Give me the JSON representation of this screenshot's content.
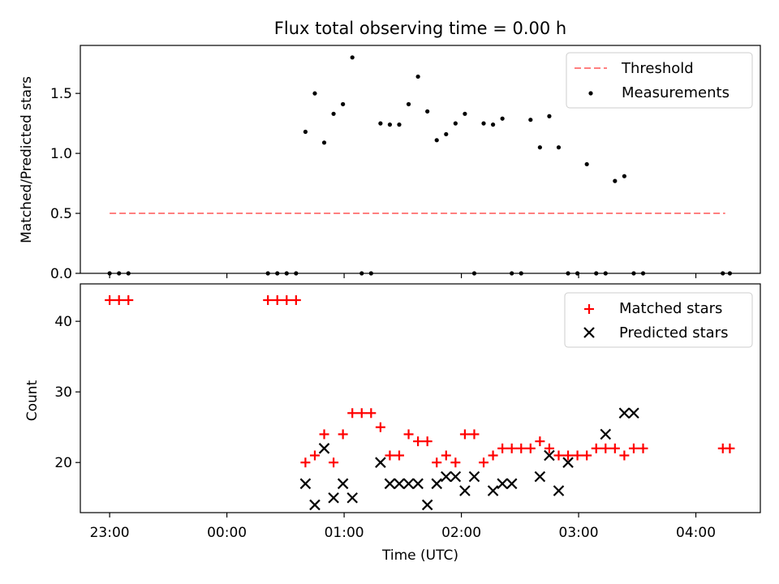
{
  "chart_data": [
    {
      "type": "scatter",
      "title": "Flux total observing time = 0.00 h",
      "ylabel": "Matched/Predicted stars",
      "xlabel": "",
      "xlim": [
        22.75,
        28.55
      ],
      "ylim": [
        0,
        1.9
      ],
      "yticks": [
        "0.0",
        "0.5",
        "1.0",
        "1.5"
      ],
      "legend_position": "top-right",
      "threshold": {
        "name": "Threshold",
        "value": 0.5,
        "x_range": [
          23.0,
          28.25
        ],
        "color": "#ff7f7f",
        "style": "dashed"
      },
      "series": [
        {
          "name": "Measurements",
          "color": "#000000",
          "marker": "dot",
          "x": [
            23.0,
            23.08,
            23.16,
            24.35,
            24.43,
            24.51,
            24.59,
            24.67,
            24.75,
            24.83,
            24.91,
            24.99,
            25.07,
            25.15,
            25.23,
            25.31,
            25.39,
            25.47,
            25.55,
            25.63,
            25.71,
            25.79,
            25.87,
            25.95,
            26.03,
            26.11,
            26.19,
            26.27,
            26.35,
            26.43,
            26.51,
            26.59,
            26.67,
            26.75,
            26.83,
            26.91,
            26.99,
            27.07,
            27.15,
            27.23,
            27.31,
            27.39,
            27.47,
            27.55,
            28.23,
            28.29
          ],
          "y": [
            0.0,
            0.0,
            0.0,
            0.0,
            0.0,
            0.0,
            0.0,
            1.18,
            1.5,
            1.09,
            1.33,
            1.41,
            1.8,
            0.0,
            0.0,
            1.25,
            1.24,
            1.24,
            1.41,
            1.64,
            1.35,
            1.11,
            1.16,
            1.25,
            1.33,
            0.0,
            1.25,
            1.24,
            1.29,
            0.0,
            0.0,
            1.28,
            1.05,
            1.31,
            1.05,
            0.0,
            0.0,
            0.91,
            0.0,
            0.0,
            0.77,
            0.81,
            0.0,
            0.0,
            0.0,
            0.0
          ]
        }
      ]
    },
    {
      "type": "scatter",
      "title": "",
      "ylabel": "Count",
      "xlabel": "Time (UTC)",
      "xlim": [
        22.75,
        28.55
      ],
      "ylim": [
        12.9,
        45.3
      ],
      "yticks": [
        "20",
        "30",
        "40"
      ],
      "xticks": [
        {
          "value": 23.0,
          "label": "23:00"
        },
        {
          "value": 24.0,
          "label": "00:00"
        },
        {
          "value": 25.0,
          "label": "01:00"
        },
        {
          "value": 26.0,
          "label": "02:00"
        },
        {
          "value": 27.0,
          "label": "03:00"
        },
        {
          "value": 28.0,
          "label": "04:00"
        }
      ],
      "legend_position": "top-right",
      "series": [
        {
          "name": "Matched stars",
          "color": "#ff0000",
          "marker": "plus",
          "x": [
            23.0,
            23.08,
            23.16,
            24.35,
            24.43,
            24.51,
            24.59,
            24.67,
            24.75,
            24.83,
            24.91,
            24.99,
            25.07,
            25.15,
            25.23,
            25.31,
            25.39,
            25.47,
            25.55,
            25.63,
            25.71,
            25.79,
            25.87,
            25.95,
            26.03,
            26.11,
            26.19,
            26.27,
            26.35,
            26.43,
            26.51,
            26.59,
            26.67,
            26.75,
            26.83,
            26.91,
            26.99,
            27.07,
            27.15,
            27.23,
            27.31,
            27.39,
            27.47,
            27.55,
            28.23,
            28.29
          ],
          "y": [
            43,
            43,
            43,
            43,
            43,
            43,
            43,
            20,
            21,
            24,
            20,
            24,
            27,
            27,
            27,
            25,
            21,
            21,
            24,
            23,
            23,
            20,
            21,
            20,
            24,
            24,
            20,
            21,
            22,
            22,
            22,
            22,
            23,
            22,
            21,
            21,
            21,
            21,
            22,
            22,
            22,
            21,
            22,
            22,
            22,
            22
          ]
        },
        {
          "name": "Predicted stars",
          "color": "#000000",
          "marker": "x",
          "x": [
            24.67,
            24.75,
            24.83,
            24.91,
            24.99,
            25.07,
            25.31,
            25.39,
            25.47,
            25.55,
            25.63,
            25.71,
            25.79,
            25.87,
            25.95,
            26.03,
            26.11,
            26.27,
            26.35,
            26.43,
            26.67,
            26.75,
            26.83,
            26.91,
            27.23,
            27.39,
            27.47
          ],
          "y": [
            17,
            14,
            22,
            15,
            17,
            15,
            20,
            17,
            17,
            17,
            17,
            14,
            17,
            18,
            18,
            16,
            18,
            16,
            17,
            17,
            18,
            21,
            16,
            20,
            24,
            27,
            27
          ]
        }
      ]
    }
  ]
}
